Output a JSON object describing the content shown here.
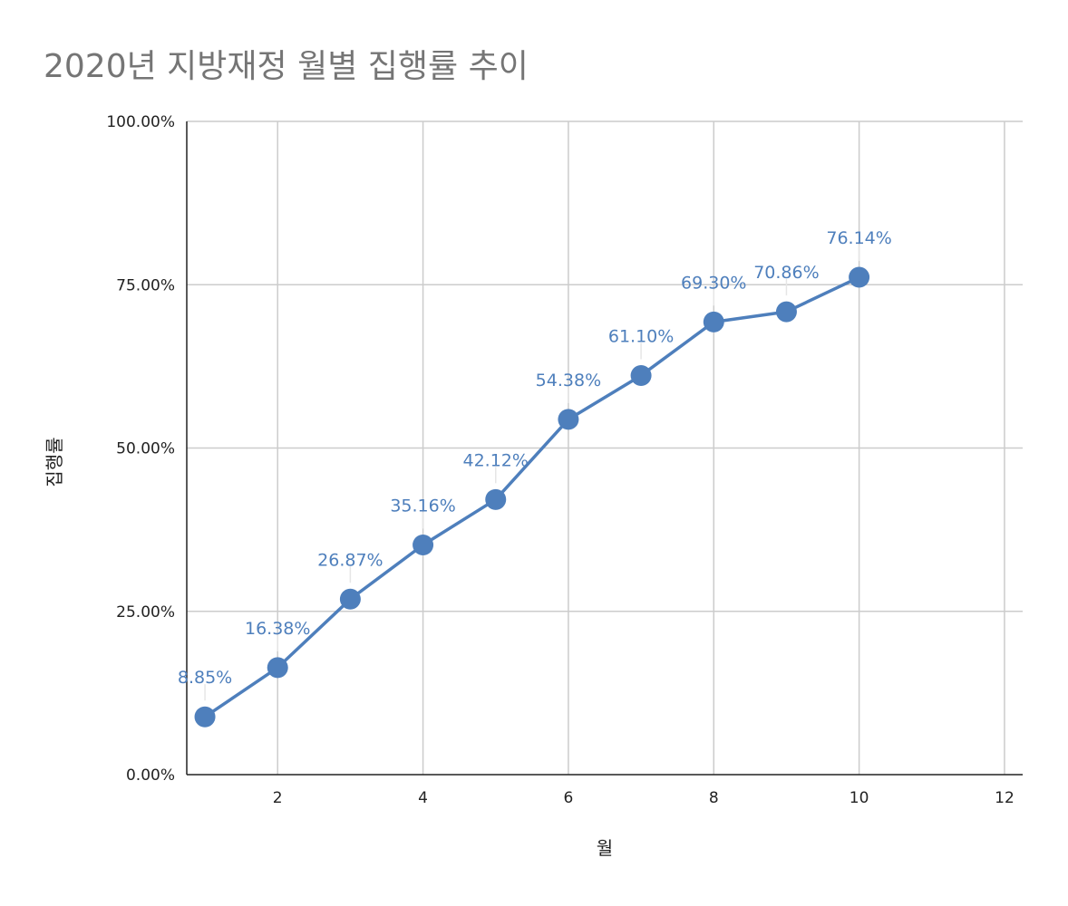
{
  "chart_data": {
    "type": "line",
    "title": "2020년 지방재정 월별 집행률 추이",
    "xlabel": "월",
    "ylabel": "집행률",
    "xlim": [
      0.75,
      12.25
    ],
    "ylim": [
      0,
      100
    ],
    "x_ticks": [
      2,
      4,
      6,
      8,
      10,
      12
    ],
    "y_ticks": [
      "0.00%",
      "25.00%",
      "50.00%",
      "75.00%",
      "100.00%"
    ],
    "y_tick_values": [
      0,
      25,
      50,
      75,
      100
    ],
    "grid": true,
    "legend": "none",
    "series": [
      {
        "x": [
          1,
          2,
          3,
          4,
          5,
          6,
          7,
          8,
          9,
          10
        ],
        "values": [
          8.85,
          16.38,
          26.87,
          35.16,
          42.12,
          54.38,
          61.1,
          69.3,
          70.86,
          76.14
        ],
        "data_labels": [
          "8.85%",
          "16.38%",
          "26.87%",
          "35.16%",
          "42.12%",
          "54.38%",
          "61.10%",
          "69.30%",
          "70.86%",
          "76.14%"
        ],
        "color": "#4e7fbc"
      }
    ]
  }
}
